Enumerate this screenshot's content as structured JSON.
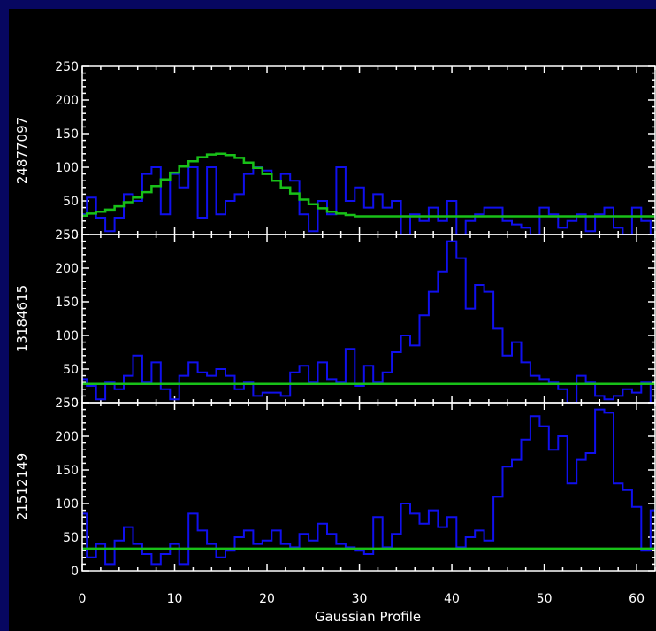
{
  "chart_data": {
    "type": "step",
    "x": [
      0,
      1,
      2,
      3,
      4,
      5,
      6,
      7,
      8,
      9,
      10,
      11,
      12,
      13,
      14,
      15,
      16,
      17,
      18,
      19,
      20,
      21,
      22,
      23,
      24,
      25,
      26,
      27,
      28,
      29,
      30,
      31,
      32,
      33,
      34,
      35,
      36,
      37,
      38,
      39,
      40,
      41,
      42,
      43,
      44,
      45,
      46,
      47,
      48,
      49,
      50,
      51,
      52,
      53,
      54,
      55,
      56,
      57,
      58,
      59,
      60,
      61,
      62
    ],
    "xlabel": "Gaussian Profile",
    "xlim": [
      0,
      62
    ],
    "xticks": [
      0,
      10,
      20,
      30,
      40,
      50,
      60
    ],
    "yticks": [
      0,
      50,
      100,
      150,
      200,
      250
    ],
    "ylim": [
      0,
      250
    ],
    "colors": {
      "data": "#1010ee",
      "fit": "#18c018",
      "axes": "#ffffff"
    },
    "panels": [
      {
        "ylabel": "24877097",
        "data": [
          30,
          55,
          25,
          5,
          25,
          60,
          50,
          90,
          100,
          30,
          90,
          70,
          100,
          25,
          100,
          30,
          50,
          60,
          90,
          100,
          95,
          80,
          90,
          80,
          30,
          5,
          50,
          30,
          100,
          50,
          70,
          40,
          60,
          40,
          50,
          0,
          30,
          20,
          40,
          20,
          50,
          0,
          20,
          30,
          40,
          40,
          20,
          15,
          10,
          0,
          40,
          30,
          10,
          20,
          30,
          5,
          30,
          40,
          10,
          0,
          40,
          20,
          0
        ],
        "fit": [
          28,
          31,
          34,
          37,
          42,
          48,
          55,
          63,
          72,
          82,
          92,
          101,
          109,
          115,
          119,
          120,
          118,
          114,
          107,
          99,
          90,
          80,
          70,
          61,
          52,
          45,
          39,
          34,
          31,
          29,
          27,
          27,
          27,
          27,
          27,
          27,
          27,
          27,
          27,
          27,
          27,
          27,
          27,
          27,
          27,
          27,
          27,
          27,
          27,
          27,
          27,
          27,
          27,
          27,
          27,
          27,
          27,
          27,
          27,
          27,
          27,
          27,
          27
        ]
      },
      {
        "ylabel": "13184615",
        "data": [
          35,
          25,
          5,
          30,
          20,
          40,
          70,
          30,
          60,
          20,
          5,
          40,
          60,
          45,
          40,
          50,
          40,
          20,
          30,
          10,
          15,
          15,
          10,
          45,
          55,
          30,
          60,
          35,
          30,
          80,
          25,
          55,
          30,
          45,
          75,
          100,
          85,
          130,
          165,
          195,
          240,
          215,
          140,
          175,
          165,
          110,
          70,
          90,
          60,
          40,
          35,
          30,
          20,
          0,
          40,
          30,
          10,
          5,
          10,
          20,
          15,
          30,
          0
        ],
        "fit": [
          28,
          28,
          28,
          28,
          28,
          28,
          28,
          28,
          28,
          28,
          28,
          28,
          28,
          28,
          28,
          28,
          28,
          28,
          28,
          28,
          28,
          28,
          28,
          28,
          28,
          28,
          28,
          28,
          28,
          28,
          28,
          28,
          28,
          28,
          28,
          28,
          28,
          28,
          28,
          28,
          28,
          28,
          28,
          28,
          28,
          28,
          28,
          28,
          28,
          28,
          28,
          28,
          28,
          28,
          28,
          28,
          28,
          28,
          28,
          28,
          28,
          28,
          28
        ]
      },
      {
        "ylabel": "21512149",
        "data": [
          85,
          20,
          40,
          10,
          45,
          65,
          40,
          25,
          10,
          25,
          40,
          10,
          85,
          60,
          40,
          20,
          30,
          50,
          60,
          40,
          45,
          60,
          40,
          35,
          55,
          45,
          70,
          55,
          40,
          35,
          30,
          25,
          80,
          35,
          55,
          100,
          85,
          70,
          90,
          65,
          80,
          35,
          50,
          60,
          45,
          110,
          155,
          165,
          195,
          230,
          215,
          180,
          200,
          130,
          165,
          175,
          240,
          235,
          130,
          120,
          95,
          30,
          90
        ],
        "fit": [
          33,
          33,
          33,
          33,
          33,
          33,
          33,
          33,
          33,
          33,
          33,
          33,
          33,
          33,
          33,
          33,
          33,
          33,
          33,
          33,
          33,
          33,
          33,
          33,
          33,
          33,
          33,
          33,
          33,
          33,
          33,
          33,
          33,
          33,
          33,
          33,
          33,
          33,
          33,
          33,
          33,
          33,
          33,
          33,
          33,
          33,
          33,
          33,
          33,
          33,
          33,
          33,
          33,
          33,
          33,
          33,
          33,
          33,
          33,
          33,
          33,
          33,
          33
        ]
      }
    ]
  }
}
